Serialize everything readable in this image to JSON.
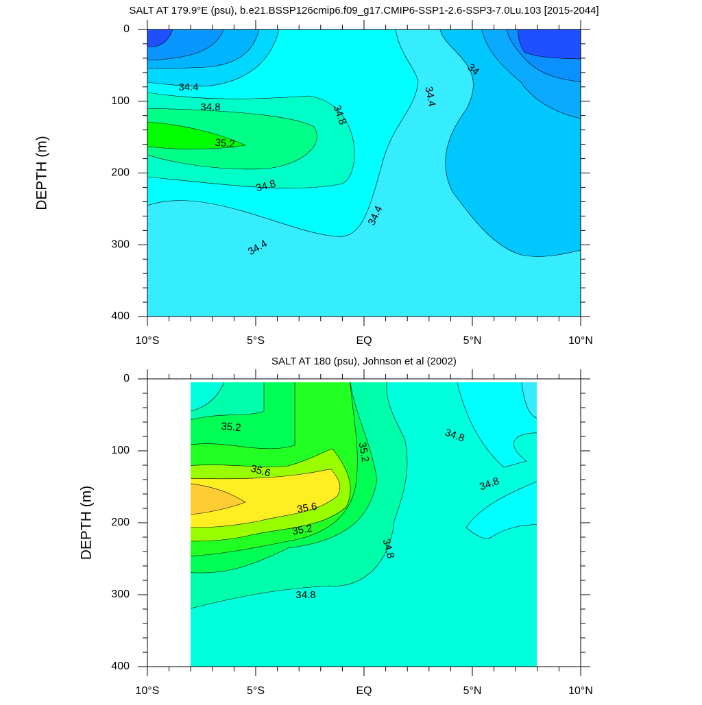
{
  "chart_data": [
    {
      "type": "contour",
      "title": "SALT AT 179.9°E (psu), b.e21.BSSP126cmip6.f09_g17.CMIP6-SSP1-2.6-SSP3-7.0Lu.103 [2015-2044]",
      "ylabel": "DEPTH (m)",
      "xlim": [
        -10,
        10
      ],
      "xticks": [
        {
          "value": -10,
          "label": "10°S"
        },
        {
          "value": -5,
          "label": "5°S"
        },
        {
          "value": 0,
          "label": "EQ"
        },
        {
          "value": 5,
          "label": "5°N"
        },
        {
          "value": 10,
          "label": "10°N"
        }
      ],
      "ylim": [
        400,
        0
      ],
      "yticks": [
        0,
        100,
        200,
        300,
        400
      ],
      "contour_labels": [
        34.4,
        34.8,
        35.2,
        34.8,
        34.8,
        34.4,
        34.4,
        34.4,
        34
      ]
    },
    {
      "type": "contour",
      "title": "SALT AT 180 (psu), Johnson et al (2002)",
      "ylabel": "DEPTH (m)",
      "xlim": [
        -10,
        10
      ],
      "xticks": [
        {
          "value": -10,
          "label": "10°S"
        },
        {
          "value": -5,
          "label": "5°S"
        },
        {
          "value": 0,
          "label": "EQ"
        },
        {
          "value": 5,
          "label": "5°N"
        },
        {
          "value": 10,
          "label": "10°N"
        }
      ],
      "ylim": [
        400,
        0
      ],
      "yticks": [
        0,
        100,
        200,
        300,
        400
      ],
      "contour_labels": [
        35.2,
        35.6,
        35.6,
        35.2,
        35.2,
        34.8,
        34.8,
        34.8,
        34.8
      ]
    }
  ]
}
